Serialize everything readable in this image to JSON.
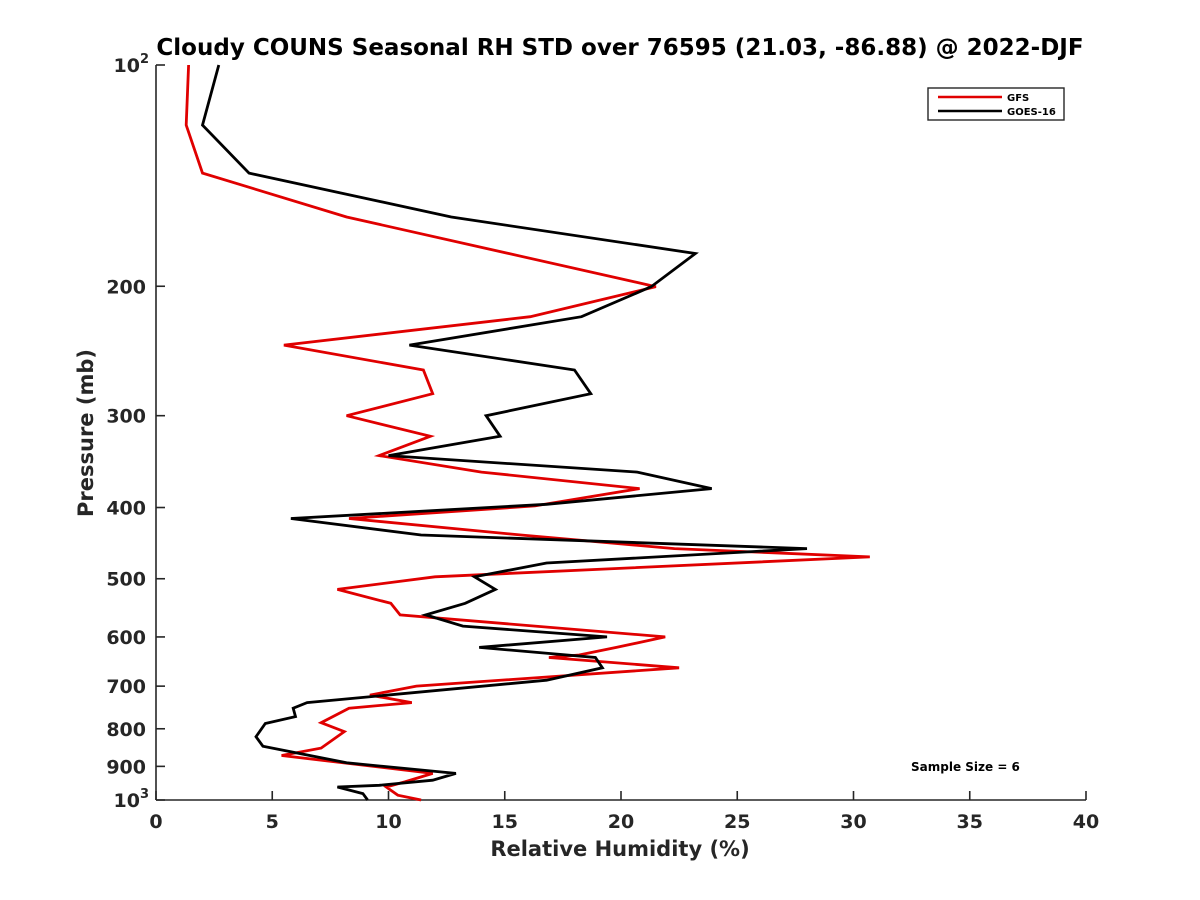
{
  "chart_data": {
    "type": "line",
    "title": "Cloudy COUNS Seasonal RH STD over 76595 (21.03, -86.88) @ 2022-DJF",
    "xlabel": "Relative Humidity (%)",
    "ylabel": "Pressure (mb)",
    "xlim": [
      0,
      40
    ],
    "ylim": [
      100,
      1000
    ],
    "yscale": "log",
    "yreversed": true,
    "xticks": [
      0,
      5,
      10,
      15,
      20,
      25,
      30,
      35,
      40
    ],
    "xtick_labels": [
      "0",
      "5",
      "10",
      "15",
      "20",
      "25",
      "30",
      "35",
      "40"
    ],
    "yticks": [
      100,
      200,
      300,
      400,
      500,
      600,
      700,
      800,
      900,
      1000
    ],
    "ytick_labels": [
      {
        "base": "10",
        "exp": "2"
      },
      {
        "base": "200"
      },
      {
        "base": "300"
      },
      {
        "base": "400"
      },
      {
        "base": "500"
      },
      {
        "base": "600"
      },
      {
        "base": "700"
      },
      {
        "base": "800"
      },
      {
        "base": "900"
      },
      {
        "base": "10",
        "exp": "3"
      }
    ],
    "grid": false,
    "legend": {
      "placement": "top-right"
    },
    "annotation": "Sample Size = 6",
    "series": [
      {
        "name": "GFS",
        "color": "#e00000",
        "points": [
          [
            1.4,
            100
          ],
          [
            1.3,
            120.7
          ],
          [
            2.0,
            140.3
          ],
          [
            8.2,
            161
          ],
          [
            21.5,
            200.3
          ],
          [
            16.1,
            220
          ],
          [
            5.5,
            240.5
          ],
          [
            11.5,
            260
          ],
          [
            11.9,
            280
          ],
          [
            8.2,
            300
          ],
          [
            11.8,
            320
          ],
          [
            9.6,
            340
          ],
          [
            14.0,
            358
          ],
          [
            20.8,
            377
          ],
          [
            16.3,
            398
          ],
          [
            8.3,
            414
          ],
          [
            15.7,
            436
          ],
          [
            22.3,
            455
          ],
          [
            30.7,
            467
          ],
          [
            12.0,
            497
          ],
          [
            7.8,
            517
          ],
          [
            10.1,
            540
          ],
          [
            10.5,
            560
          ],
          [
            21.9,
            600
          ],
          [
            19.8,
            620
          ],
          [
            18.2,
            635
          ],
          [
            16.9,
            640
          ],
          [
            22.5,
            661
          ],
          [
            11.2,
            700
          ],
          [
            9.2,
            720
          ],
          [
            11.0,
            737
          ],
          [
            8.3,
            750
          ],
          [
            7.1,
            785
          ],
          [
            8.1,
            807
          ],
          [
            7.1,
            850
          ],
          [
            5.4,
            870
          ],
          [
            11.9,
            920
          ],
          [
            10.7,
            945
          ],
          [
            9.9,
            960
          ],
          [
            10.4,
            985
          ],
          [
            11.4,
            1000
          ]
        ]
      },
      {
        "name": "GOES-16",
        "color": "#000000",
        "points": [
          [
            2.7,
            100
          ],
          [
            2.0,
            120.7
          ],
          [
            4.0,
            140.3
          ],
          [
            12.7,
            161
          ],
          [
            23.2,
            180.5
          ],
          [
            21.3,
            200.3
          ],
          [
            18.3,
            220
          ],
          [
            10.9,
            240.5
          ],
          [
            18.0,
            260
          ],
          [
            18.7,
            280
          ],
          [
            14.2,
            300
          ],
          [
            14.8,
            320
          ],
          [
            10.0,
            340
          ],
          [
            20.7,
            358
          ],
          [
            23.9,
            377
          ],
          [
            16.8,
            396
          ],
          [
            5.8,
            414
          ],
          [
            11.4,
            436
          ],
          [
            28.0,
            455
          ],
          [
            16.8,
            476
          ],
          [
            13.7,
            497
          ],
          [
            14.6,
            517
          ],
          [
            13.3,
            540
          ],
          [
            11.6,
            560
          ],
          [
            13.2,
            580
          ],
          [
            19.4,
            600
          ],
          [
            13.9,
            620
          ],
          [
            18.9,
            640
          ],
          [
            19.2,
            661
          ],
          [
            16.8,
            687
          ],
          [
            6.5,
            737
          ],
          [
            5.9,
            750
          ],
          [
            6.0,
            770
          ],
          [
            4.7,
            787
          ],
          [
            4.3,
            820
          ],
          [
            4.6,
            845
          ],
          [
            8.2,
            890
          ],
          [
            12.9,
            920
          ],
          [
            11.9,
            940
          ],
          [
            9.6,
            955
          ],
          [
            7.8,
            960
          ],
          [
            8.9,
            980
          ],
          [
            9.1,
            1000
          ]
        ]
      }
    ]
  }
}
